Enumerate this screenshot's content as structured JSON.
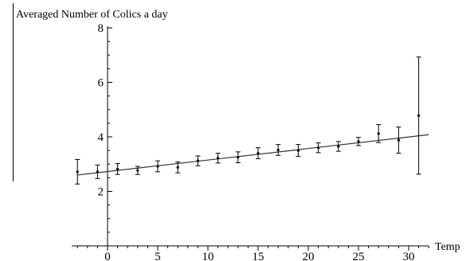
{
  "chart_data": {
    "type": "scatter",
    "title": "",
    "ylabel": "Averaged Number of Colics a day",
    "xlabel": "Temp",
    "xlim": [
      -3,
      33
    ],
    "ylim": [
      0,
      8
    ],
    "x_ticks": [
      0,
      5,
      10,
      15,
      20,
      25,
      30
    ],
    "y_ticks": [
      2,
      4,
      6,
      8
    ],
    "grid": false,
    "series": [
      {
        "x": [
          -3,
          -1,
          1,
          3,
          5,
          7,
          9,
          11,
          13,
          15,
          17,
          19,
          21,
          23,
          25,
          27,
          29,
          31
        ],
        "y": [
          2.72,
          2.72,
          2.82,
          2.77,
          2.92,
          2.88,
          3.12,
          3.22,
          3.25,
          3.4,
          3.52,
          3.5,
          3.6,
          3.65,
          3.83,
          4.12,
          3.88,
          4.78
        ],
        "y_err": [
          0.45,
          0.25,
          0.2,
          0.15,
          0.2,
          0.2,
          0.18,
          0.18,
          0.2,
          0.2,
          0.2,
          0.22,
          0.18,
          0.18,
          0.15,
          0.33,
          0.48,
          2.15
        ]
      }
    ],
    "fit_line": {
      "x": [
        -3,
        32
      ],
      "y": [
        2.6,
        4.08
      ]
    }
  }
}
